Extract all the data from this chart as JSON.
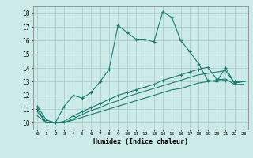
{
  "xlabel": "Humidex (Indice chaleur)",
  "background_color": "#cceae7",
  "grid_color": "#aacfcc",
  "line_color": "#1a7a6e",
  "xlim": [
    -0.5,
    23.5
  ],
  "ylim": [
    9.5,
    18.5
  ],
  "xtick_labels": [
    "0",
    "1",
    "2",
    "3",
    "4",
    "5",
    "6",
    "7",
    "8",
    "9",
    "10",
    "11",
    "12",
    "13",
    "14",
    "15",
    "16",
    "17",
    "18",
    "19",
    "20",
    "21",
    "22",
    "23"
  ],
  "ytick_values": [
    10,
    11,
    12,
    13,
    14,
    15,
    16,
    17,
    18
  ],
  "series1_x": [
    0,
    1,
    2,
    3,
    4,
    5,
    6,
    7,
    8,
    9,
    10,
    11,
    12,
    13,
    14,
    15,
    16,
    17,
    18,
    19,
    20,
    21,
    22
  ],
  "series1_y": [
    11.2,
    10.2,
    10.0,
    11.2,
    12.0,
    11.8,
    12.2,
    13.0,
    13.9,
    17.1,
    16.6,
    16.1,
    16.1,
    15.9,
    18.1,
    17.7,
    16.0,
    15.2,
    14.3,
    13.1,
    13.0,
    14.0,
    12.9
  ],
  "series2_x": [
    0,
    1,
    2,
    3,
    4,
    5,
    6,
    7,
    8,
    9,
    10,
    11,
    12,
    13,
    14,
    15,
    16,
    17,
    18,
    19,
    20,
    21,
    22,
    23
  ],
  "series2_y": [
    11.0,
    10.0,
    10.0,
    10.1,
    10.5,
    10.8,
    11.1,
    11.4,
    11.7,
    12.0,
    12.2,
    12.4,
    12.6,
    12.8,
    13.1,
    13.3,
    13.5,
    13.7,
    13.9,
    14.05,
    13.2,
    13.1,
    13.0,
    13.0
  ],
  "series3_x": [
    0,
    1,
    2,
    3,
    4,
    5,
    6,
    7,
    8,
    9,
    10,
    11,
    12,
    13,
    14,
    15,
    16,
    17,
    18,
    19,
    20,
    21,
    22,
    23
  ],
  "series3_y": [
    10.5,
    10.0,
    10.0,
    10.0,
    10.2,
    10.4,
    10.6,
    10.8,
    11.0,
    11.2,
    11.4,
    11.6,
    11.8,
    12.0,
    12.2,
    12.4,
    12.5,
    12.7,
    12.9,
    13.0,
    13.1,
    13.2,
    12.8,
    12.8
  ],
  "series4_x": [
    0,
    1,
    2,
    3,
    4,
    5,
    6,
    7,
    8,
    9,
    10,
    11,
    12,
    13,
    14,
    15,
    16,
    17,
    18,
    19,
    20,
    21,
    22,
    23
  ],
  "series4_y": [
    10.8,
    10.0,
    10.0,
    10.0,
    10.3,
    10.6,
    10.9,
    11.1,
    11.4,
    11.6,
    11.9,
    12.1,
    12.3,
    12.5,
    12.7,
    12.9,
    13.1,
    13.3,
    13.5,
    13.6,
    13.7,
    13.8,
    12.9,
    13.0
  ]
}
